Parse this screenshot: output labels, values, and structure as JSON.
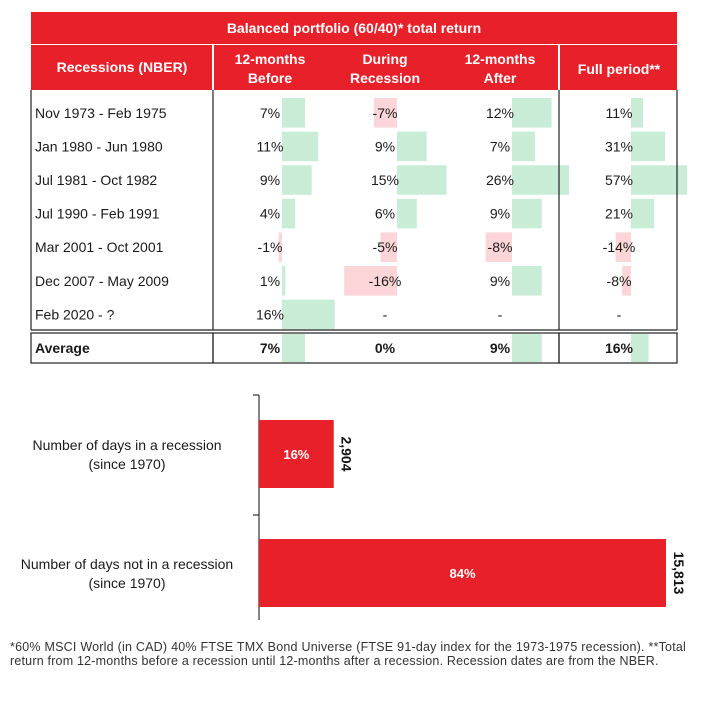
{
  "table": {
    "title": "Balanced portfolio (60/40)* total return",
    "headers": {
      "rec": "Recessions (NBER)",
      "before": [
        "12-months",
        "Before"
      ],
      "during": [
        "During",
        "Recession"
      ],
      "after": [
        "12-months",
        "After"
      ],
      "full": "Full period**"
    },
    "rows": [
      {
        "label": "Nov 1973 - Feb 1975",
        "before": "7%",
        "during": "-7%",
        "after": "12%",
        "full": "11%"
      },
      {
        "label": "Jan 1980 - Jun 1980",
        "before": "11%",
        "during": "9%",
        "after": "7%",
        "full": "31%"
      },
      {
        "label": "Jul 1981 - Oct 1982",
        "before": "9%",
        "during": "15%",
        "after": "26%",
        "full": "57%"
      },
      {
        "label": "Jul 1990 - Feb 1991",
        "before": "4%",
        "during": "6%",
        "after": "9%",
        "full": "21%"
      },
      {
        "label": "Mar 2001 - Oct 2001",
        "before": "-1%",
        "during": "-5%",
        "after": "-8%",
        "full": "-14%"
      },
      {
        "label": "Dec 2007 - May 2009",
        "before": "1%",
        "during": "-16%",
        "after": "9%",
        "full": "-8%"
      },
      {
        "label": "Feb 2020 - ?",
        "before": "16%",
        "during": "-",
        "after": "-",
        "full": "-"
      }
    ],
    "average": {
      "label": "Average",
      "before": "7%",
      "during": "0%",
      "after": "9%",
      "full": "16%"
    },
    "colors": {
      "header": "#e8202a",
      "positive": "#c9ecd6",
      "negative": "#fbd5d7"
    }
  },
  "chart_data": {
    "type": "bar",
    "orientation": "horizontal",
    "categories": [
      [
        "Number of days in a recession",
        "(since 1970)"
      ],
      [
        "Number of days not in a recession",
        "(since 1970)"
      ]
    ],
    "values": [
      2904,
      15813
    ],
    "value_labels": [
      "2,904",
      "15,813"
    ],
    "percent_labels": [
      "16%",
      "84%"
    ],
    "color": "#e8202a"
  },
  "footnote": "*60% MSCI World (in CAD) 40% FTSE TMX Bond Universe (FTSE 91-day index for the 1973-1975 recession). **Total return from 12-months before a recession until 12-months after a recession. Recession dates are from the NBER."
}
